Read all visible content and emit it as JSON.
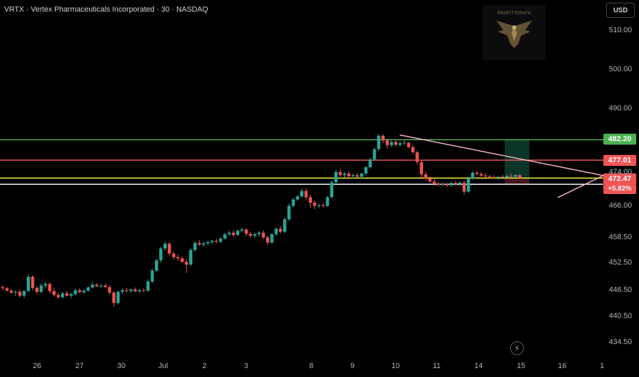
{
  "header": {
    "symbol_title": "VRTX · Vertex Pharmaceuticals Incorporated · 30 · NASDAQ",
    "currency_button": "USD"
  },
  "logo": {
    "text": "PROFITTOPATH",
    "icon": "eagle-logo-icon"
  },
  "price_axis": {
    "ticks": [
      "510.00",
      "500.00",
      "490.00",
      "474.00",
      "466.00",
      "458.50",
      "452.50",
      "446.50",
      "440.50",
      "434.50"
    ]
  },
  "price_labels": {
    "green_level": "482.20",
    "red_level": "477.01",
    "current_price": "472.47",
    "change_percent": "+5.82%"
  },
  "time_axis": {
    "ticks": [
      "26",
      "27",
      "30",
      "Jul",
      "2",
      "3",
      "8",
      "9",
      "10",
      "11",
      "14",
      "15",
      "16",
      "1"
    ]
  },
  "colors": {
    "up": "#26a69a",
    "down": "#ef5350",
    "green_line": "#4caf50",
    "red_line": "#f05454",
    "yellow_line": "#f5f23a",
    "white_line": "#ffffff",
    "triangle": "#f7b6c2",
    "background": "#000000"
  },
  "icons": {
    "replay": "lightning-replay-icon"
  },
  "chart_data": {
    "type": "candlestick",
    "series": [
      {
        "name": "",
        "ohlc": [
          [
            444.8,
            445.2,
            444.0,
            444.5
          ],
          [
            444.5,
            444.8,
            443.5,
            443.9
          ],
          [
            443.9,
            444.3,
            443.0,
            443.4
          ],
          [
            443.4,
            444.0,
            442.5,
            443.6
          ],
          [
            443.6,
            444.2,
            442.2,
            442.6
          ],
          [
            442.6,
            444.0,
            442.0,
            443.8
          ],
          [
            443.8,
            448.0,
            443.6,
            447.4
          ],
          [
            447.4,
            447.8,
            444.0,
            444.6
          ],
          [
            444.6,
            445.0,
            443.0,
            443.6
          ],
          [
            443.6,
            445.8,
            443.2,
            445.2
          ],
          [
            445.2,
            446.2,
            444.6,
            445.6
          ],
          [
            445.6,
            446.0,
            443.2,
            443.8
          ],
          [
            443.8,
            444.6,
            442.4,
            442.8
          ],
          [
            442.8,
            443.5,
            441.8,
            442.2
          ],
          [
            442.2,
            443.6,
            441.9,
            443.2
          ],
          [
            443.2,
            443.8,
            442.4,
            442.6
          ],
          [
            442.6,
            443.4,
            442.0,
            443.0
          ],
          [
            443.0,
            444.3,
            442.7,
            444.0
          ],
          [
            444.0,
            444.5,
            443.2,
            443.5
          ],
          [
            443.5,
            444.2,
            443.0,
            443.9
          ],
          [
            443.9,
            445.0,
            443.6,
            444.7
          ],
          [
            444.7,
            446.0,
            444.4,
            445.4
          ],
          [
            445.4,
            445.8,
            444.8,
            445.0
          ],
          [
            445.0,
            445.6,
            444.5,
            445.2
          ],
          [
            445.2,
            445.7,
            444.6,
            444.8
          ],
          [
            444.8,
            445.3,
            443.0,
            443.4
          ],
          [
            443.4,
            443.8,
            439.8,
            440.8
          ],
          [
            440.8,
            444.0,
            440.4,
            443.6
          ],
          [
            443.6,
            444.4,
            443.0,
            444.0
          ],
          [
            444.0,
            444.6,
            443.5,
            443.8
          ],
          [
            443.8,
            444.5,
            443.2,
            444.2
          ],
          [
            444.2,
            444.7,
            443.5,
            443.7
          ],
          [
            443.7,
            444.3,
            443.3,
            444.0
          ],
          [
            444.0,
            444.5,
            443.5,
            443.9
          ],
          [
            443.9,
            446.8,
            443.6,
            446.2
          ],
          [
            446.2,
            449.5,
            445.8,
            449.0
          ],
          [
            449.0,
            452.0,
            448.6,
            451.6
          ],
          [
            451.6,
            455.0,
            451.0,
            454.6
          ],
          [
            454.6,
            456.4,
            454.0,
            455.8
          ],
          [
            455.8,
            456.2,
            452.8,
            453.3
          ],
          [
            453.3,
            453.8,
            451.8,
            452.4
          ],
          [
            452.4,
            453.0,
            451.5,
            452.1
          ],
          [
            452.1,
            452.6,
            450.8,
            451.2
          ],
          [
            451.2,
            452.0,
            448.4,
            450.5
          ],
          [
            450.5,
            454.8,
            450.2,
            454.2
          ],
          [
            454.2,
            456.5,
            453.8,
            456.0
          ],
          [
            456.0,
            456.8,
            455.2,
            455.6
          ],
          [
            455.6,
            456.4,
            455.0,
            455.9
          ],
          [
            455.9,
            456.6,
            455.4,
            456.2
          ],
          [
            456.2,
            456.8,
            455.8,
            456.5
          ],
          [
            456.5,
            457.0,
            455.9,
            456.3
          ],
          [
            456.3,
            457.4,
            455.9,
            457.1
          ],
          [
            457.1,
            458.5,
            456.8,
            458.2
          ],
          [
            458.2,
            459.1,
            457.8,
            458.6
          ],
          [
            458.6,
            459.2,
            457.6,
            458.0
          ],
          [
            458.0,
            459.4,
            457.8,
            459.1
          ],
          [
            459.1,
            459.8,
            458.6,
            459.4
          ],
          [
            459.4,
            459.8,
            457.8,
            458.3
          ],
          [
            458.3,
            458.8,
            457.4,
            457.8
          ],
          [
            457.8,
            458.6,
            457.2,
            458.2
          ],
          [
            458.2,
            459.0,
            457.6,
            458.6
          ],
          [
            458.6,
            459.2,
            457.0,
            457.4
          ],
          [
            457.4,
            457.9,
            455.6,
            456.1
          ],
          [
            456.1,
            458.6,
            455.8,
            458.2
          ],
          [
            458.2,
            460.0,
            457.8,
            459.6
          ],
          [
            459.6,
            460.3,
            458.4,
            458.8
          ],
          [
            458.8,
            462.5,
            458.5,
            462.0
          ],
          [
            462.0,
            466.0,
            461.6,
            465.4
          ],
          [
            465.4,
            467.5,
            465.0,
            467.0
          ],
          [
            467.0,
            468.2,
            466.6,
            467.8
          ],
          [
            467.8,
            469.8,
            467.4,
            469.2
          ],
          [
            469.2,
            469.8,
            467.0,
            467.6
          ],
          [
            467.6,
            468.2,
            465.0,
            466.2
          ],
          [
            466.2,
            466.8,
            464.5,
            465.4
          ],
          [
            465.4,
            466.0,
            464.8,
            465.6
          ],
          [
            465.6,
            466.1,
            465.0,
            465.4
          ],
          [
            465.4,
            468.0,
            465.1,
            467.6
          ],
          [
            467.6,
            471.8,
            467.3,
            471.4
          ],
          [
            471.4,
            474.6,
            471.0,
            474.0
          ],
          [
            474.0,
            474.8,
            472.8,
            473.2
          ],
          [
            473.2,
            474.0,
            472.6,
            473.6
          ],
          [
            473.6,
            474.2,
            472.4,
            472.9
          ],
          [
            472.9,
            473.6,
            472.3,
            473.2
          ],
          [
            473.2,
            473.8,
            472.5,
            472.8
          ],
          [
            472.8,
            473.9,
            472.4,
            473.6
          ],
          [
            473.6,
            475.6,
            473.2,
            475.2
          ],
          [
            475.2,
            477.6,
            474.8,
            477.2
          ],
          [
            477.2,
            480.2,
            476.8,
            479.8
          ],
          [
            479.8,
            483.6,
            479.4,
            483.2
          ],
          [
            483.2,
            483.6,
            481.4,
            482.0
          ],
          [
            482.0,
            482.4,
            480.0,
            480.8
          ],
          [
            480.8,
            482.0,
            480.3,
            481.6
          ],
          [
            481.6,
            482.0,
            480.5,
            480.9
          ],
          [
            480.9,
            481.7,
            480.4,
            481.3
          ],
          [
            481.3,
            482.0,
            480.8,
            481.4
          ],
          [
            481.4,
            481.6,
            480.0,
            480.3
          ],
          [
            480.3,
            480.8,
            478.6,
            479.0
          ],
          [
            479.0,
            479.4,
            476.0,
            476.5
          ],
          [
            476.5,
            477.0,
            472.5,
            473.4
          ],
          [
            473.4,
            474.2,
            471.8,
            472.4
          ],
          [
            472.4,
            472.9,
            471.2,
            471.6
          ],
          [
            471.6,
            472.2,
            470.6,
            471.1
          ],
          [
            471.1,
            471.6,
            470.4,
            470.8
          ],
          [
            470.8,
            471.5,
            470.3,
            471.0
          ],
          [
            471.0,
            471.4,
            470.2,
            470.6
          ],
          [
            470.6,
            471.6,
            470.3,
            471.2
          ],
          [
            471.2,
            471.7,
            470.6,
            470.9
          ],
          [
            470.9,
            471.6,
            470.5,
            471.3
          ],
          [
            471.3,
            471.8,
            468.2,
            469.0
          ],
          [
            469.0,
            472.8,
            468.7,
            472.4
          ],
          [
            472.4,
            474.2,
            472.0,
            473.8
          ],
          [
            473.8,
            474.3,
            473.1,
            473.5
          ],
          [
            473.5,
            474.0,
            472.8,
            473.1
          ],
          [
            473.1,
            473.7,
            472.6,
            472.9
          ],
          [
            472.9,
            473.4,
            472.4,
            472.7
          ],
          [
            472.7,
            473.2,
            472.3,
            472.5
          ],
          [
            472.5,
            473.0,
            472.0,
            472.8
          ],
          [
            472.8,
            473.3,
            472.4,
            472.6
          ],
          [
            472.6,
            473.2,
            472.4,
            473.0
          ],
          [
            473.0,
            473.6,
            472.6,
            472.8
          ],
          [
            472.8,
            473.4,
            472.5,
            473.2
          ],
          [
            473.2,
            473.5,
            472.8,
            472.47
          ]
        ]
      }
    ],
    "levels": [
      482.2,
      477.01,
      472.47,
      470.9
    ],
    "triangle": {
      "upper": [
        [
          10.1,
          483.4
        ],
        [
          15.0,
          473.1
        ]
      ],
      "lower": [
        [
          13.9,
          467.5
        ],
        [
          15.0,
          473.1
        ]
      ]
    },
    "position_box": {
      "entry": 472.47,
      "target": 482.2,
      "stop": 471.0
    }
  }
}
